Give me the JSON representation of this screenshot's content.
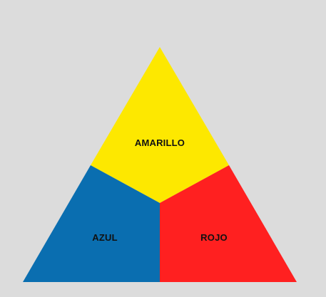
{
  "diagram": {
    "regions": [
      {
        "id": "yellow",
        "label": "AMARILLO",
        "color": "#fde800"
      },
      {
        "id": "blue",
        "label": "AZUL",
        "color": "#0a6eb0"
      },
      {
        "id": "red",
        "label": "ROJO",
        "color": "#ff2020"
      }
    ],
    "background_color": "#dcdcdc"
  }
}
